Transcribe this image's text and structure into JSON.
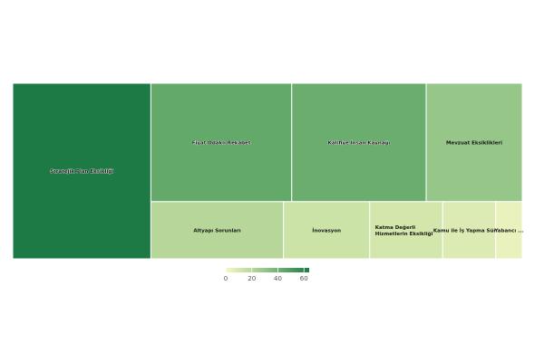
{
  "chart_data": {
    "type": "treemap",
    "title": "",
    "items": [
      {
        "label": "Stratejik Plan Eksikliği",
        "value": 64
      },
      {
        "label": "Fiyat Odaklı Rekabet",
        "value": 44
      },
      {
        "label": "Kalifiye İnsan Kaynağı",
        "value": 42
      },
      {
        "label": "Mevzuat Eksiklikleri",
        "value": 30
      },
      {
        "label": "Altyapı Sorunları",
        "value": 20
      },
      {
        "label": "İnovasyon",
        "value": 13
      },
      {
        "label": "Katma Değerli Hizmetlerin Eksikliği",
        "value": 11
      },
      {
        "label": "Kamu ile İş Yapma Süre...",
        "value": 8
      },
      {
        "label": "Yabancı ...",
        "value": 4
      }
    ],
    "colorscale": {
      "min": 0,
      "max": 64,
      "ticks": [
        0,
        20,
        40,
        60
      ],
      "colors": [
        "#f5f8c5",
        "#c3dea0",
        "#8fc285",
        "#54a060",
        "#1e7a45"
      ]
    }
  }
}
